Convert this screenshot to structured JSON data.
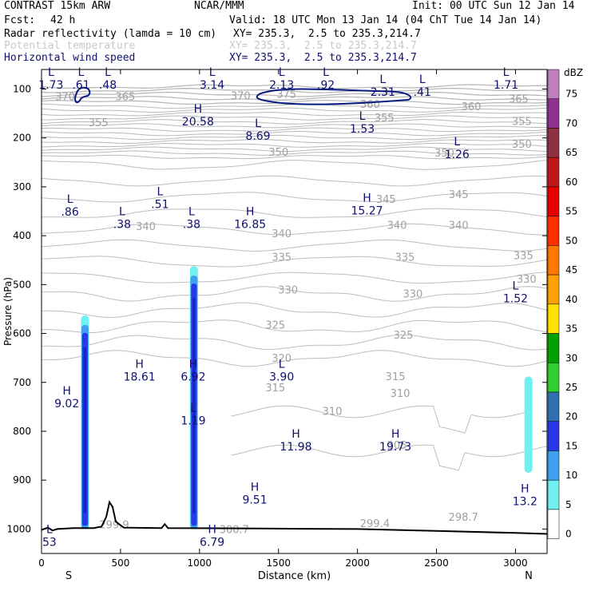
{
  "header": {
    "model": "CONTRAST 15km ARW",
    "org": "NCAR/MMM",
    "init": "Init: 00 UTC Sun 12 Jan 14",
    "fcst_label": "Fcst:",
    "fcst_value": "42 h",
    "valid": "Valid: 18 UTC Mon 13 Jan 14 (04 ChT Tue 14 Jan 14)",
    "fields": [
      {
        "name": "Radar reflectivity (lamda = 10 cm)",
        "xy": "XY= 235.3,  2.5 to 235.3,214.7"
      },
      {
        "name": "Potential temperature",
        "xy": "XY= 235.3,  2.5 to 235.3,214.7"
      },
      {
        "name": "Horizontal wind speed",
        "xy": "XY= 235.3,  2.5 to 235.3,214.7"
      }
    ]
  },
  "chart_data": {
    "type": "cross-section",
    "xlabel": "Distance (km)",
    "ylabel": "Pressure (hPa)",
    "xlim": [
      0,
      3200
    ],
    "ylim": [
      1050,
      60
    ],
    "x_ticks": [
      0,
      500,
      1000,
      1500,
      2000,
      2500,
      3000
    ],
    "y_ticks": [
      100,
      200,
      300,
      400,
      500,
      600,
      700,
      800,
      900,
      1000
    ],
    "x_end_labels": {
      "left": "S",
      "right": "N"
    },
    "colorbar": {
      "unit": "dBZ",
      "levels": [
        75,
        70,
        65,
        60,
        55,
        50,
        45,
        40,
        35,
        30,
        25,
        20,
        15,
        10,
        5,
        0
      ],
      "colors": [
        "#c080c0",
        "#903090",
        "#903040",
        "#c01818",
        "#e80000",
        "#ff3000",
        "#ff7800",
        "#ffa000",
        "#ffe000",
        "#00a000",
        "#30d030",
        "#3070b0",
        "#2838e8",
        "#40a0f0",
        "#70f0f0",
        "#ffffff"
      ]
    },
    "theta_labels": [
      {
        "x": 150,
        "p": 115,
        "v": "370"
      },
      {
        "x": 530,
        "p": 115,
        "v": "365"
      },
      {
        "x": 1260,
        "p": 113,
        "v": "370"
      },
      {
        "x": 1550,
        "p": 110,
        "v": "375"
      },
      {
        "x": 2080,
        "p": 130,
        "v": "360"
      },
      {
        "x": 2720,
        "p": 135,
        "v": "360"
      },
      {
        "x": 3020,
        "p": 120,
        "v": "365"
      },
      {
        "x": 360,
        "p": 168,
        "v": "355"
      },
      {
        "x": 2170,
        "p": 158,
        "v": "355"
      },
      {
        "x": 3040,
        "p": 165,
        "v": "355"
      },
      {
        "x": 1500,
        "p": 228,
        "v": "350"
      },
      {
        "x": 2550,
        "p": 230,
        "v": "350"
      },
      {
        "x": 3040,
        "p": 212,
        "v": "350"
      },
      {
        "x": 2180,
        "p": 325,
        "v": "345"
      },
      {
        "x": 2640,
        "p": 315,
        "v": "345"
      },
      {
        "x": 660,
        "p": 380,
        "v": "340"
      },
      {
        "x": 1520,
        "p": 395,
        "v": "340"
      },
      {
        "x": 2250,
        "p": 378,
        "v": "340"
      },
      {
        "x": 2640,
        "p": 378,
        "v": "340"
      },
      {
        "x": 1520,
        "p": 443,
        "v": "335"
      },
      {
        "x": 2300,
        "p": 443,
        "v": "335"
      },
      {
        "x": 3050,
        "p": 440,
        "v": "335"
      },
      {
        "x": 1560,
        "p": 510,
        "v": "330"
      },
      {
        "x": 2350,
        "p": 518,
        "v": "330"
      },
      {
        "x": 3070,
        "p": 488,
        "v": "330"
      },
      {
        "x": 1480,
        "p": 582,
        "v": "325"
      },
      {
        "x": 2290,
        "p": 602,
        "v": "325"
      },
      {
        "x": 1520,
        "p": 650,
        "v": "320"
      },
      {
        "x": 2240,
        "p": 687,
        "v": "315"
      },
      {
        "x": 1480,
        "p": 710,
        "v": "315"
      },
      {
        "x": 2270,
        "p": 722,
        "v": "310"
      },
      {
        "x": 1840,
        "p": 758,
        "v": "310"
      },
      {
        "x": 2250,
        "p": 828,
        "v": "305"
      },
      {
        "x": 460,
        "p": 990,
        "v": "299.9"
      },
      {
        "x": 1220,
        "p": 1000,
        "v": "300.7"
      },
      {
        "x": 2110,
        "p": 988,
        "v": "299.4"
      },
      {
        "x": 2670,
        "p": 975,
        "v": "298.7"
      }
    ],
    "wind_extrema": [
      {
        "x": 60,
        "p": 73,
        "type": "L",
        "v": "1.73"
      },
      {
        "x": 250,
        "p": 73,
        "type": "L",
        "v": ".61"
      },
      {
        "x": 420,
        "p": 73,
        "type": "L",
        "v": ".48"
      },
      {
        "x": 1080,
        "p": 73,
        "type": "L",
        "v": "3.14"
      },
      {
        "x": 1520,
        "p": 73,
        "type": "L",
        "v": "2.13"
      },
      {
        "x": 1800,
        "p": 73,
        "type": "L",
        "v": ".92"
      },
      {
        "x": 2160,
        "p": 88,
        "type": "L",
        "v": "2.31"
      },
      {
        "x": 2410,
        "p": 88,
        "type": "L",
        "v": ".41"
      },
      {
        "x": 2940,
        "p": 73,
        "type": "L",
        "v": "1.71"
      },
      {
        "x": 990,
        "p": 148,
        "type": "H",
        "v": "20.58"
      },
      {
        "x": 1370,
        "p": 178,
        "type": "L",
        "v": "8.69"
      },
      {
        "x": 2030,
        "p": 163,
        "type": "L",
        "v": "1.53"
      },
      {
        "x": 2630,
        "p": 215,
        "type": "L",
        "v": "1.26"
      },
      {
        "x": 180,
        "p": 333,
        "type": "L",
        "v": ".86"
      },
      {
        "x": 750,
        "p": 317,
        "type": "L",
        "v": ".51"
      },
      {
        "x": 510,
        "p": 358,
        "type": "L",
        "v": ".38"
      },
      {
        "x": 950,
        "p": 358,
        "type": "L",
        "v": ".38"
      },
      {
        "x": 1320,
        "p": 358,
        "type": "H",
        "v": "16.85"
      },
      {
        "x": 2060,
        "p": 330,
        "type": "H",
        "v": "15.27"
      },
      {
        "x": 3000,
        "p": 510,
        "type": "L",
        "v": "1.52"
      },
      {
        "x": 620,
        "p": 670,
        "type": "H",
        "v": "18.61"
      },
      {
        "x": 960,
        "p": 670,
        "type": "H",
        "v": "6.92"
      },
      {
        "x": 1520,
        "p": 670,
        "type": "L",
        "v": "3.90"
      },
      {
        "x": 160,
        "p": 725,
        "type": "H",
        "v": "9.02"
      },
      {
        "x": 960,
        "p": 760,
        "type": "L",
        "v": "1.19"
      },
      {
        "x": 1610,
        "p": 813,
        "type": "H",
        "v": "11.98"
      },
      {
        "x": 2240,
        "p": 813,
        "type": "H",
        "v": "19.73"
      },
      {
        "x": 1350,
        "p": 922,
        "type": "H",
        "v": "9.51"
      },
      {
        "x": 3060,
        "p": 925,
        "type": "H",
        "v": "13.2"
      },
      {
        "x": 50,
        "p": 1008,
        "type": "L",
        "v": "53"
      },
      {
        "x": 1080,
        "p": 1008,
        "type": "H",
        "v": "6.79"
      }
    ],
    "reflectivity_columns": [
      {
        "x": 275,
        "p_top": 563,
        "p_bot": 1000,
        "core_dbz": 20
      },
      {
        "x": 965,
        "p_top": 462,
        "p_bot": 1000,
        "core_dbz": 20
      },
      {
        "x": 3082,
        "p_top": 688,
        "p_bot": 885,
        "core_dbz": 5
      }
    ]
  }
}
